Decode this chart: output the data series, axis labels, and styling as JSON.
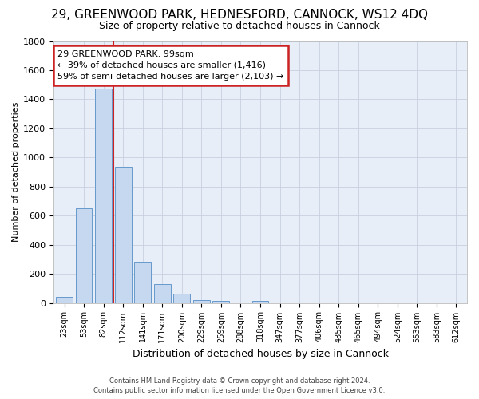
{
  "title1": "29, GREENWOOD PARK, HEDNESFORD, CANNOCK, WS12 4DQ",
  "title2": "Size of property relative to detached houses in Cannock",
  "xlabel": "Distribution of detached houses by size in Cannock",
  "ylabel": "Number of detached properties",
  "categories": [
    "23sqm",
    "53sqm",
    "82sqm",
    "112sqm",
    "141sqm",
    "171sqm",
    "200sqm",
    "229sqm",
    "259sqm",
    "288sqm",
    "318sqm",
    "347sqm",
    "377sqm",
    "406sqm",
    "435sqm",
    "465sqm",
    "494sqm",
    "524sqm",
    "553sqm",
    "583sqm",
    "612sqm"
  ],
  "values": [
    40,
    648,
    1474,
    938,
    285,
    128,
    63,
    22,
    15,
    0,
    15,
    0,
    0,
    0,
    0,
    0,
    0,
    0,
    0,
    0,
    0
  ],
  "bar_color": "#c5d8f0",
  "bar_edge_color": "#6699cc",
  "vline_color": "#cc2222",
  "annotation_line1": "29 GREENWOOD PARK: 99sqm",
  "annotation_line2": "← 39% of detached houses are smaller (1,416)",
  "annotation_line3": "59% of semi-detached houses are larger (2,103) →",
  "annotation_box_color": "#cc2222",
  "ylim": [
    0,
    1800
  ],
  "yticks": [
    0,
    200,
    400,
    600,
    800,
    1000,
    1200,
    1400,
    1600,
    1800
  ],
  "bg_color": "#e8eef8",
  "grid_color": "#c8cfe0",
  "title1_fontsize": 11,
  "title2_fontsize": 9,
  "footer1": "Contains HM Land Registry data © Crown copyright and database right 2024.",
  "footer2": "Contains public sector information licensed under the Open Government Licence v3.0."
}
